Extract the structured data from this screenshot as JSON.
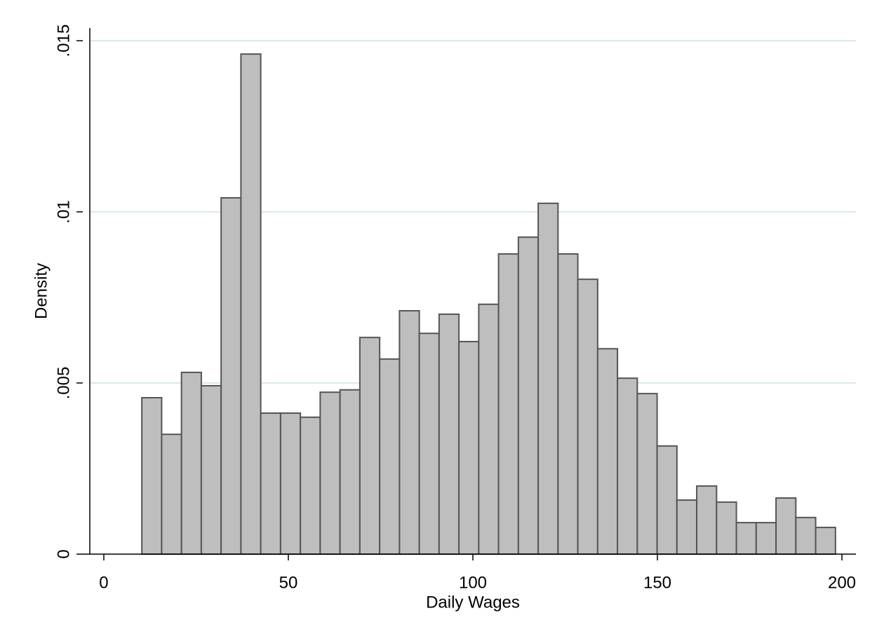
{
  "chart_data": {
    "type": "histogram",
    "x_label": "Daily Wages",
    "y_label": "Density",
    "bins": [
      10.3,
      15.67,
      21.04,
      26.41,
      31.78,
      37.15,
      42.52,
      47.89,
      53.26,
      58.63,
      64,
      69.37,
      74.74,
      80.11,
      85.48,
      90.85,
      96.22,
      101.59,
      106.96,
      112.33,
      117.7,
      123.07,
      128.44,
      133.81,
      139.18,
      144.55,
      149.92,
      155.29,
      160.66,
      166.03,
      171.4,
      176.77,
      182.14,
      187.51,
      192.88,
      198.25
    ],
    "values": [
      0.00457,
      0.0035,
      0.00531,
      0.00492,
      0.01041,
      0.01461,
      0.00412,
      0.00412,
      0.004,
      0.00473,
      0.0048,
      0.00633,
      0.0057,
      0.00711,
      0.00645,
      0.00701,
      0.00621,
      0.0073,
      0.00877,
      0.00926,
      0.01025,
      0.00877,
      0.00803,
      0.006,
      0.00514,
      0.00469,
      0.00316,
      0.00158,
      0.00199,
      0.00152,
      0.00092,
      0.00092,
      0.00164,
      0.00107,
      0.00078
    ],
    "color": "#bebebe",
    "edge_color": "#555555",
    "xlim": [
      -5.7,
      203.8
    ],
    "xticks": [
      0,
      50,
      100,
      150,
      200
    ],
    "ylim": [
      0,
      0.01537
    ],
    "yticks": [
      0,
      {
        "value": 0.005,
        "label": ".005"
      },
      {
        "value": 0.01,
        "label": ".01"
      },
      {
        "value": 0.015,
        "label": ".015"
      }
    ],
    "grid": true
  }
}
